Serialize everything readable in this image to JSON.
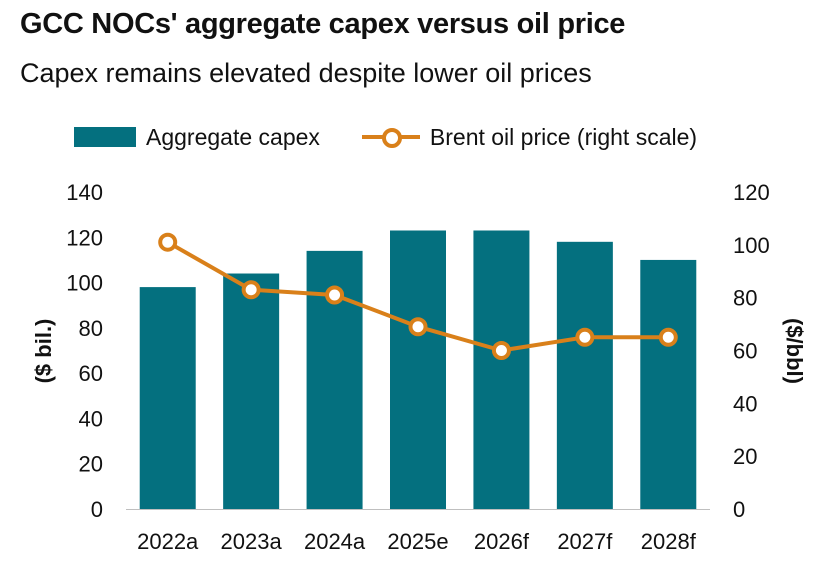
{
  "chart_data": {
    "type": "bar",
    "title": "GCC NOCs' aggregate capex versus oil price",
    "subtitle": "Capex remains elevated despite lower oil prices",
    "categories": [
      "2022a",
      "2023a",
      "2024a",
      "2025e",
      "2026f",
      "2027f",
      "2028f"
    ],
    "series": [
      {
        "name": "Aggregate capex",
        "type": "bar",
        "axis": "left",
        "values": [
          98,
          104,
          114,
          123,
          123,
          118,
          110
        ]
      },
      {
        "name": "Brent oil price (right scale)",
        "type": "line",
        "axis": "right",
        "values": [
          101,
          83,
          81,
          69,
          60,
          65,
          65
        ]
      }
    ],
    "ylabel": "($ bil.)",
    "ylabel_right": "($/bbl)",
    "ylim": [
      0,
      140
    ],
    "ylim_right": [
      0,
      120
    ],
    "yticks": [
      0,
      20,
      40,
      60,
      80,
      100,
      120,
      140
    ],
    "yticks_right": [
      0,
      20,
      40,
      60,
      80,
      100,
      120
    ],
    "grid": false,
    "legend_position": "top",
    "colors": {
      "bar": "#04707f",
      "line": "#d9801a",
      "marker_fill": "#ffffff"
    }
  }
}
